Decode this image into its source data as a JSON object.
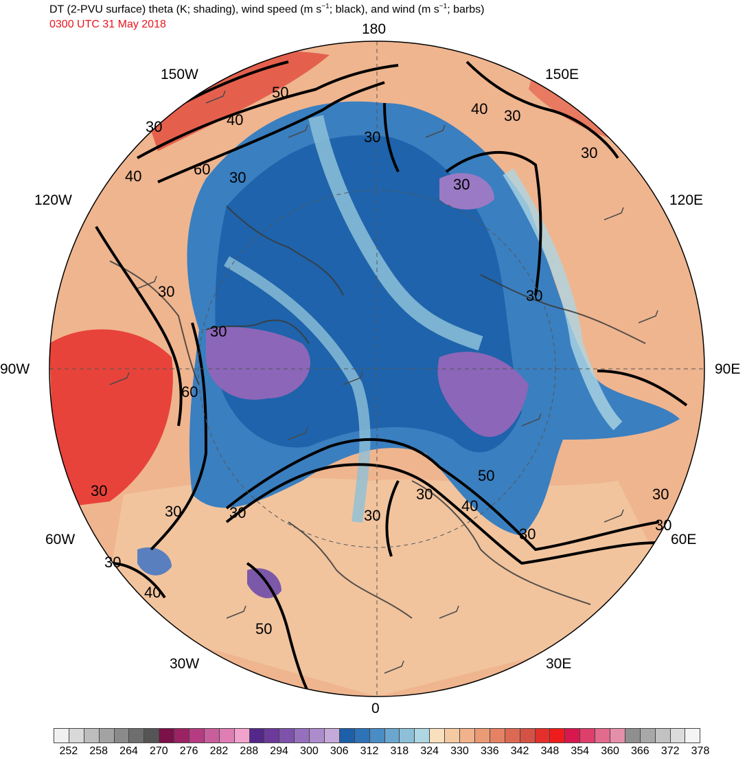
{
  "title": {
    "prefix": "DT (2-PVU surface) theta (K; shading), wind speed (m s",
    "sup1": "−1",
    "middle": "; black), and wind (m s",
    "sup2": "−1",
    "suffix": "; barbs)"
  },
  "subtitle": {
    "text": "0300 UTC 31 May 2018",
    "color": "#e8141c"
  },
  "map": {
    "projection": "north-polar-stereographic",
    "longitude_labels": {
      "n180": "180",
      "w150": "150W",
      "e150": "150E",
      "w120": "120W",
      "e120": "120E",
      "w90": "90W",
      "e90": "90E",
      "w60": "60W",
      "e60": "60E",
      "w30": "30W",
      "e30": "30E",
      "zero": "0"
    },
    "contour_labels": [
      "30",
      "40",
      "50",
      "60",
      "30",
      "40",
      "30",
      "60",
      "40",
      "30",
      "30",
      "30",
      "30",
      "30",
      "30",
      "30",
      "30",
      "30",
      "30",
      "40",
      "50",
      "30",
      "30",
      "40",
      "50",
      "30",
      "30",
      "30"
    ]
  },
  "colorbar": {
    "colors": [
      "#f0f0f0",
      "#d9d9d9",
      "#bdbdbd",
      "#a3a3a3",
      "#8a8a8a",
      "#6e6e6e",
      "#555555",
      "#7a1149",
      "#9b2263",
      "#b53c82",
      "#c95e9c",
      "#de7eb5",
      "#f2a3cd",
      "#54288a",
      "#6b3a9a",
      "#7e52ab",
      "#9670bd",
      "#ad8ccc",
      "#c4aad9",
      "#1d5fa8",
      "#2e73b7",
      "#4a8cc4",
      "#6ba6cf",
      "#8dc0d8",
      "#aed6e3",
      "#f8dfbe",
      "#f5c9a2",
      "#f1b38b",
      "#eb9a76",
      "#e48263",
      "#dc6a52",
      "#d45245",
      "#e42f2b",
      "#ee1c1c",
      "#d8174f",
      "#de3e6a",
      "#e26a8c",
      "#e58fab",
      "#8f8f8f",
      "#a8a8a8",
      "#c2c2c2",
      "#dcdcdc",
      "#f4f4f4"
    ],
    "tick_labels": [
      "252",
      "258",
      "264",
      "270",
      "276",
      "282",
      "288",
      "294",
      "300",
      "306",
      "312",
      "318",
      "324",
      "330",
      "336",
      "342",
      "348",
      "354",
      "360",
      "366",
      "372",
      "378"
    ]
  }
}
